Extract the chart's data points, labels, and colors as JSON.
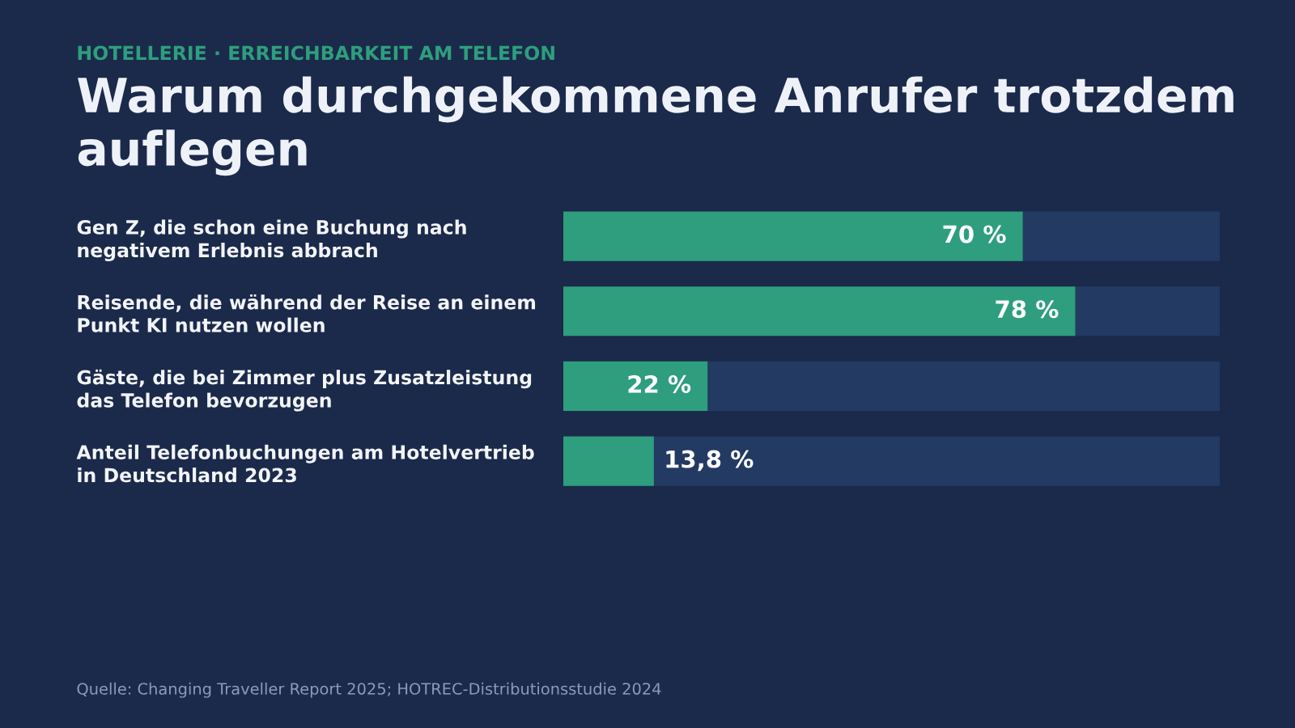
{
  "chart_data": {
    "type": "bar",
    "orientation": "horizontal",
    "stacked": true,
    "subtitle": "HOTELLERIE · ERREICHBARKEIT AM TELEFON",
    "title": "Warum durchgekommene Anrufer trotzdem auflegen",
    "categories": [
      "Gen Z, die schon eine Buchung nach\nnegativem Erlebnis abbrach",
      "Reisende, die während der Reise an einem\nPunkt KI nutzen wollen",
      "Gäste, die bei Zimmer plus Zusatzleistung\ndas Telefon bevorzugen",
      "Anteil Telefonbuchungen am Hotelvertrieb\nin Deutschland 2023"
    ],
    "series": [
      {
        "color": "#2e9e7e",
        "values": [
          70,
          78,
          22,
          13.8
        ],
        "value_labels": [
          "70 %",
          "78 %",
          "22 %",
          "13,8 %"
        ]
      },
      {
        "color": "#233a63",
        "values": [
          30,
          22,
          78,
          86.2
        ]
      }
    ],
    "xlim": [
      0,
      100
    ],
    "tick_labels": "y",
    "annotations": [
      "Quelle: Changing Traveller Report 2025; HOTREC-Distributionsstudie 2024"
    ]
  }
}
